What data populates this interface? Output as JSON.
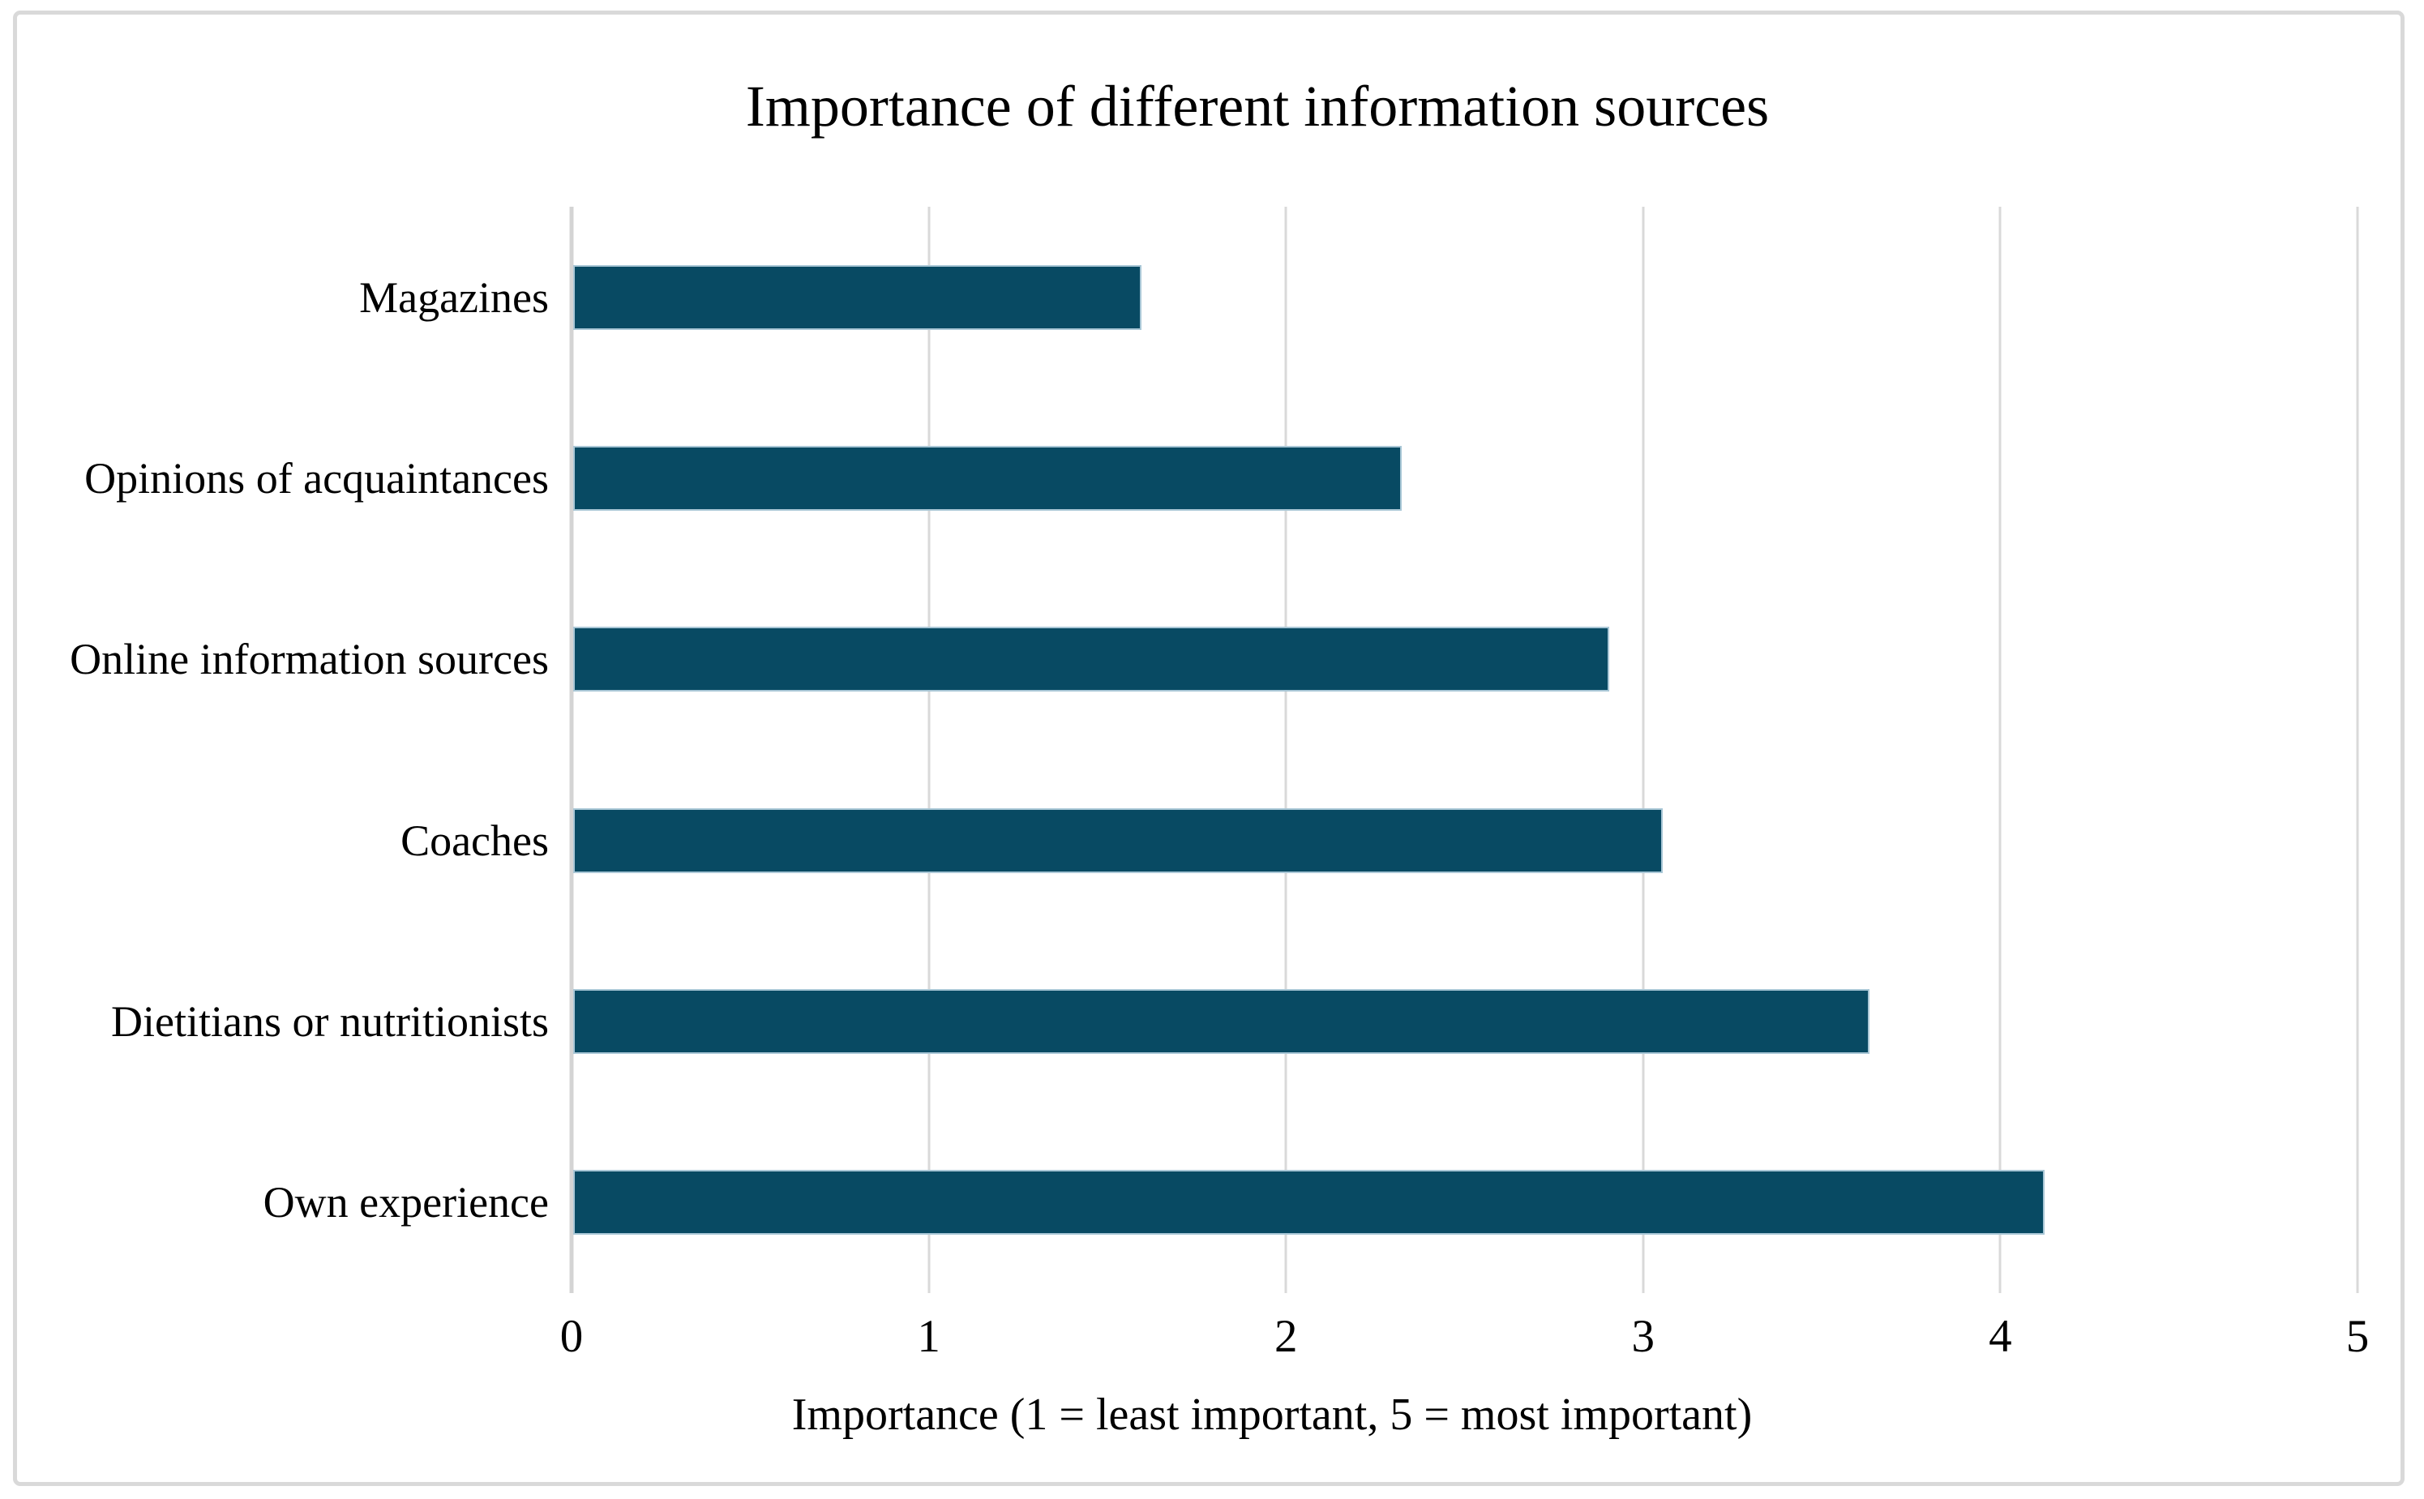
{
  "chart_data": {
    "type": "bar",
    "orientation": "horizontal",
    "title": "Importance of different information sources",
    "xlabel": "Importance (1 = least important, 5 = most important)",
    "categories": [
      "Magazines",
      "Opinions of acquaintances",
      "Online information sources",
      "Coaches",
      "Dietitians or nutritionists",
      "Own experience"
    ],
    "values": [
      1.59,
      2.32,
      2.9,
      3.05,
      3.63,
      4.12
    ],
    "xlim": [
      0,
      5
    ],
    "x_ticks": [
      "0",
      "1",
      "2",
      "3",
      "4",
      "5"
    ],
    "grid": true,
    "legend": "none",
    "bar_color": "#084a63",
    "bar_border_color": "#a9c7d6",
    "gridline_color": "#d9d9d9",
    "frame_border_color": "#d9d9d9"
  }
}
